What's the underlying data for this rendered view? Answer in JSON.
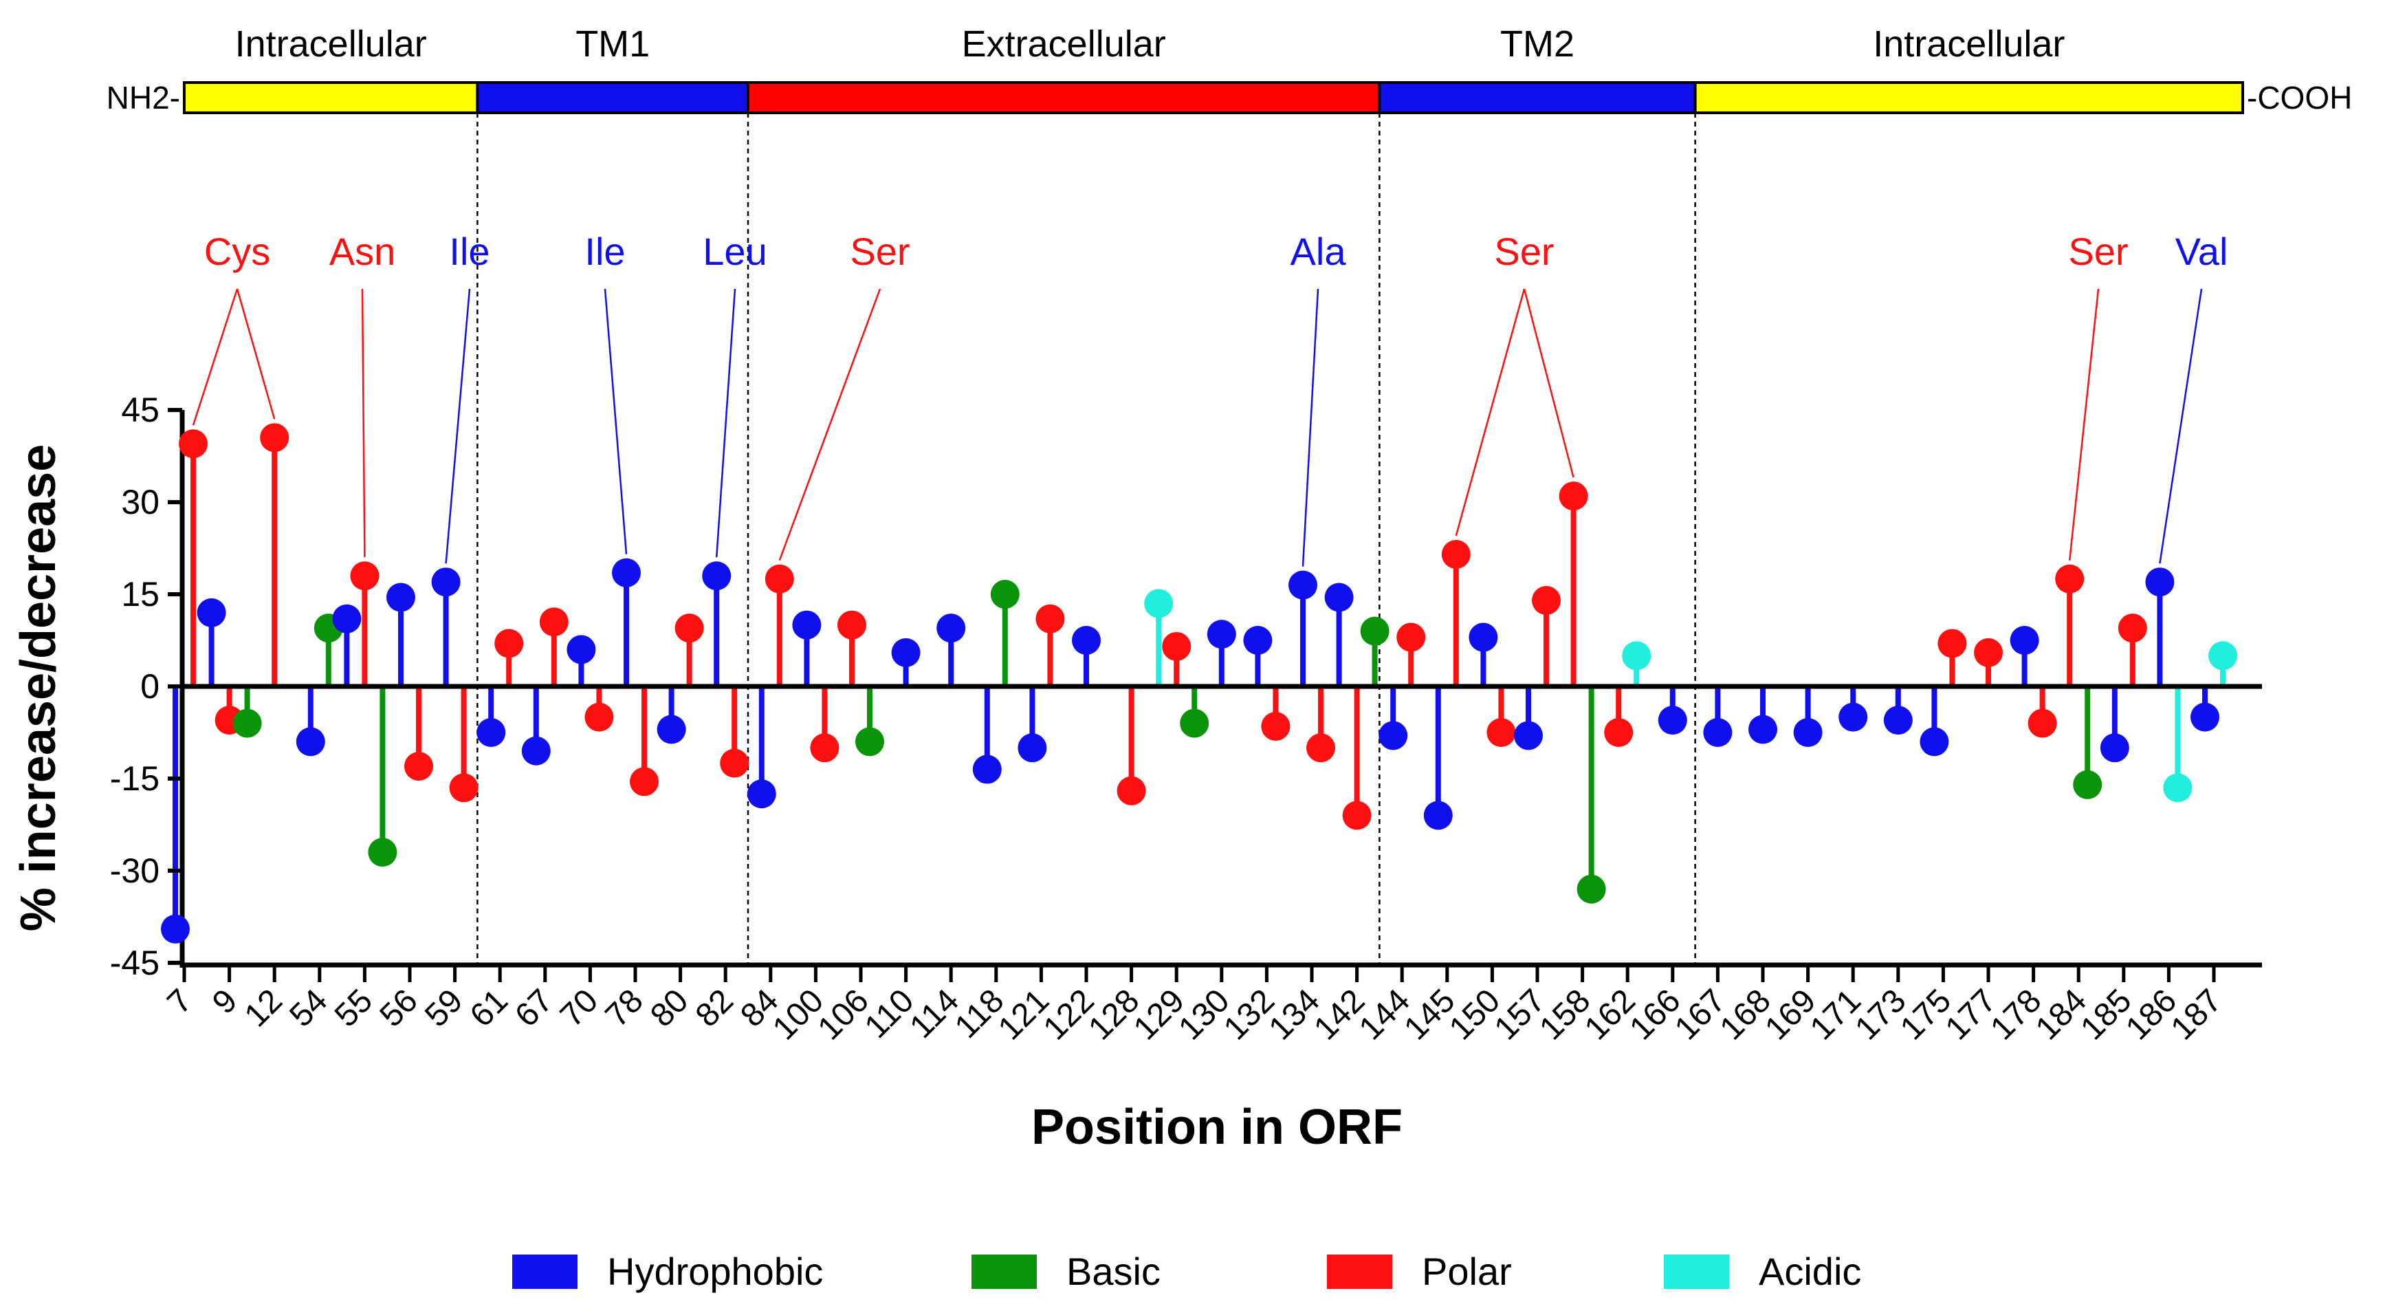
{
  "chart_data": {
    "type": "lollipop",
    "xlabel": "Position in ORF",
    "ylabel": "% increase/decrease",
    "ylim": [
      -45,
      45
    ],
    "yticks": [
      45,
      30,
      15,
      0,
      -15,
      -30,
      -45
    ],
    "ytick_labels": [
      "45",
      "30",
      "15",
      "0",
      "-15",
      "-30",
      "-45"
    ],
    "categories": [
      "7",
      "9",
      "12",
      "54",
      "55",
      "56",
      "59",
      "61",
      "67",
      "70",
      "78",
      "80",
      "82",
      "84",
      "100",
      "106",
      "110",
      "114",
      "118",
      "121",
      "122",
      "128",
      "129",
      "130",
      "132",
      "134",
      "142",
      "144",
      "145",
      "150",
      "157",
      "158",
      "162",
      "166",
      "167",
      "168",
      "169",
      "171",
      "173",
      "175",
      "177",
      "178",
      "184",
      "185",
      "186",
      "187"
    ],
    "colors": {
      "Hydrophobic": "#1010ee",
      "Basic": "#0a940a",
      "Polar": "#ff1010",
      "Acidic": "#22eedd"
    },
    "legend": {
      "placement": "bottom",
      "entries": [
        "Hydrophobic",
        "Basic",
        "Polar",
        "Acidic"
      ]
    },
    "points": [
      {
        "x": "7",
        "y": -39.5,
        "type": "Hydrophobic"
      },
      {
        "x": "7",
        "y": 39.5,
        "type": "Polar"
      },
      {
        "x": "9",
        "y": 12.0,
        "type": "Hydrophobic"
      },
      {
        "x": "9",
        "y": -5.5,
        "type": "Polar"
      },
      {
        "x": "9",
        "y": -6.0,
        "type": "Basic"
      },
      {
        "x": "12",
        "y": 40.5,
        "type": "Polar"
      },
      {
        "x": "54",
        "y": -9.0,
        "type": "Hydrophobic"
      },
      {
        "x": "54",
        "y": 9.5,
        "type": "Basic"
      },
      {
        "x": "55",
        "y": 11.0,
        "type": "Hydrophobic"
      },
      {
        "x": "55",
        "y": 18.0,
        "type": "Polar"
      },
      {
        "x": "55",
        "y": -27.0,
        "type": "Basic"
      },
      {
        "x": "56",
        "y": 14.5,
        "type": "Hydrophobic"
      },
      {
        "x": "56",
        "y": -13.0,
        "type": "Polar"
      },
      {
        "x": "59",
        "y": 17.0,
        "type": "Hydrophobic"
      },
      {
        "x": "59",
        "y": -16.5,
        "type": "Polar"
      },
      {
        "x": "61",
        "y": -7.5,
        "type": "Hydrophobic"
      },
      {
        "x": "61",
        "y": 7.0,
        "type": "Polar"
      },
      {
        "x": "67",
        "y": -10.5,
        "type": "Hydrophobic"
      },
      {
        "x": "67",
        "y": 10.5,
        "type": "Polar"
      },
      {
        "x": "70",
        "y": 6.0,
        "type": "Hydrophobic"
      },
      {
        "x": "70",
        "y": -5.0,
        "type": "Polar"
      },
      {
        "x": "78",
        "y": 18.5,
        "type": "Hydrophobic"
      },
      {
        "x": "78",
        "y": -15.5,
        "type": "Polar"
      },
      {
        "x": "80",
        "y": -7.0,
        "type": "Hydrophobic"
      },
      {
        "x": "80",
        "y": 9.5,
        "type": "Polar"
      },
      {
        "x": "82",
        "y": 18.0,
        "type": "Hydrophobic"
      },
      {
        "x": "82",
        "y": -12.5,
        "type": "Polar"
      },
      {
        "x": "84",
        "y": -17.5,
        "type": "Hydrophobic"
      },
      {
        "x": "84",
        "y": 17.5,
        "type": "Polar"
      },
      {
        "x": "100",
        "y": 10.0,
        "type": "Hydrophobic"
      },
      {
        "x": "100",
        "y": -10.0,
        "type": "Polar"
      },
      {
        "x": "106",
        "y": 10.0,
        "type": "Polar"
      },
      {
        "x": "106",
        "y": -9.0,
        "type": "Basic"
      },
      {
        "x": "110",
        "y": 5.5,
        "type": "Hydrophobic"
      },
      {
        "x": "114",
        "y": 9.5,
        "type": "Hydrophobic"
      },
      {
        "x": "118",
        "y": -13.5,
        "type": "Hydrophobic"
      },
      {
        "x": "118",
        "y": 15.0,
        "type": "Basic"
      },
      {
        "x": "121",
        "y": -10.0,
        "type": "Hydrophobic"
      },
      {
        "x": "121",
        "y": 11.0,
        "type": "Polar"
      },
      {
        "x": "122",
        "y": 7.5,
        "type": "Hydrophobic"
      },
      {
        "x": "128",
        "y": -17.0,
        "type": "Polar"
      },
      {
        "x": "129",
        "y": 13.5,
        "type": "Acidic"
      },
      {
        "x": "129",
        "y": 6.5,
        "type": "Polar"
      },
      {
        "x": "129",
        "y": -6.0,
        "type": "Basic"
      },
      {
        "x": "130",
        "y": 8.5,
        "type": "Hydrophobic"
      },
      {
        "x": "132",
        "y": 7.5,
        "type": "Hydrophobic"
      },
      {
        "x": "132",
        "y": -6.5,
        "type": "Polar"
      },
      {
        "x": "134",
        "y": 16.5,
        "type": "Hydrophobic"
      },
      {
        "x": "134",
        "y": -10.0,
        "type": "Polar"
      },
      {
        "x": "142",
        "y": 14.5,
        "type": "Hydrophobic"
      },
      {
        "x": "142",
        "y": -21.0,
        "type": "Polar"
      },
      {
        "x": "142",
        "y": 9.0,
        "type": "Basic"
      },
      {
        "x": "144",
        "y": -8.0,
        "type": "Hydrophobic"
      },
      {
        "x": "144",
        "y": 8.0,
        "type": "Polar"
      },
      {
        "x": "145",
        "y": -21.0,
        "type": "Hydrophobic"
      },
      {
        "x": "145",
        "y": 21.5,
        "type": "Polar"
      },
      {
        "x": "150",
        "y": 8.0,
        "type": "Hydrophobic"
      },
      {
        "x": "150",
        "y": -7.5,
        "type": "Polar"
      },
      {
        "x": "157",
        "y": -8.0,
        "type": "Hydrophobic"
      },
      {
        "x": "157",
        "y": 14.0,
        "type": "Polar"
      },
      {
        "x": "158",
        "y": 31.0,
        "type": "Polar"
      },
      {
        "x": "158",
        "y": -33.0,
        "type": "Basic"
      },
      {
        "x": "162",
        "y": -7.5,
        "type": "Polar"
      },
      {
        "x": "162",
        "y": 5.0,
        "type": "Acidic"
      },
      {
        "x": "166",
        "y": -5.5,
        "type": "Hydrophobic"
      },
      {
        "x": "167",
        "y": -7.5,
        "type": "Hydrophobic"
      },
      {
        "x": "168",
        "y": -7.0,
        "type": "Hydrophobic"
      },
      {
        "x": "169",
        "y": -7.5,
        "type": "Hydrophobic"
      },
      {
        "x": "171",
        "y": -5.0,
        "type": "Hydrophobic"
      },
      {
        "x": "173",
        "y": -5.5,
        "type": "Hydrophobic"
      },
      {
        "x": "175",
        "y": -9.0,
        "type": "Hydrophobic"
      },
      {
        "x": "175",
        "y": 7.0,
        "type": "Polar"
      },
      {
        "x": "177",
        "y": 5.5,
        "type": "Polar"
      },
      {
        "x": "178",
        "y": 7.5,
        "type": "Hydrophobic"
      },
      {
        "x": "178",
        "y": -6.0,
        "type": "Polar"
      },
      {
        "x": "184",
        "y": 17.5,
        "type": "Polar"
      },
      {
        "x": "184",
        "y": -16.0,
        "type": "Basic"
      },
      {
        "x": "185",
        "y": -10.0,
        "type": "Hydrophobic"
      },
      {
        "x": "185",
        "y": 9.5,
        "type": "Polar"
      },
      {
        "x": "186",
        "y": 17.0,
        "type": "Hydrophobic"
      },
      {
        "x": "186",
        "y": -16.5,
        "type": "Acidic"
      },
      {
        "x": "187",
        "y": -5.0,
        "type": "Hydrophobic"
      },
      {
        "x": "187",
        "y": 5.0,
        "type": "Acidic"
      }
    ],
    "domains": {
      "left_terminus": "NH2-",
      "right_terminus": "-COOH",
      "regions": [
        {
          "label": "Intracellular",
          "color": "#ffff00",
          "end_after": "59"
        },
        {
          "label": "TM1",
          "color": "#1010ee",
          "end_after": "82"
        },
        {
          "label": "Extracellular",
          "color": "#ff0000",
          "end_after": "142"
        },
        {
          "label": "TM2",
          "color": "#1010ee",
          "end_after": "166"
        },
        {
          "label": "Intracellular",
          "color": "#ffff00",
          "end_after": "187"
        }
      ]
    },
    "annotations": [
      {
        "label": "Cys",
        "type": "Polar",
        "targets": [
          {
            "x": "7",
            "y": 39.5
          },
          {
            "x": "12",
            "y": 40.5
          }
        ]
      },
      {
        "label": "Asn",
        "type": "Polar",
        "targets": [
          {
            "x": "55",
            "y": 18.0
          }
        ]
      },
      {
        "label": "Ile",
        "type": "Hydrophobic",
        "targets": [
          {
            "x": "59",
            "y": 17.0
          }
        ]
      },
      {
        "label": "Ile",
        "type": "Hydrophobic",
        "targets": [
          {
            "x": "78",
            "y": 18.5
          }
        ]
      },
      {
        "label": "Leu",
        "type": "Hydrophobic",
        "targets": [
          {
            "x": "82",
            "y": 18.0
          }
        ]
      },
      {
        "label": "Ser",
        "type": "Polar",
        "targets": [
          {
            "x": "84",
            "y": 17.5
          }
        ]
      },
      {
        "label": "Ala",
        "type": "Hydrophobic",
        "targets": [
          {
            "x": "134",
            "y": 16.5
          }
        ]
      },
      {
        "label": "Ser",
        "type": "Polar",
        "targets": [
          {
            "x": "145",
            "y": 21.5
          },
          {
            "x": "158",
            "y": 31.0
          }
        ]
      },
      {
        "label": "Ser",
        "type": "Polar",
        "targets": [
          {
            "x": "184",
            "y": 17.5
          }
        ]
      },
      {
        "label": "Val",
        "type": "Hydrophobic",
        "targets": [
          {
            "x": "186",
            "y": 17.0
          }
        ]
      }
    ]
  }
}
